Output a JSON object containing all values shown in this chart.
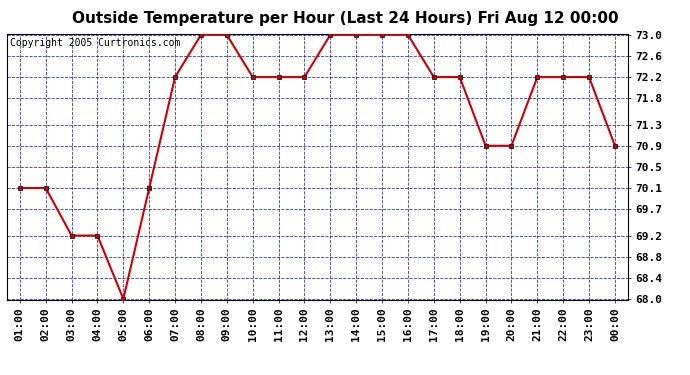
{
  "title": "Outside Temperature per Hour (Last 24 Hours) Fri Aug 12 00:00",
  "copyright": "Copyright 2005 Curtronics.com",
  "x_labels": [
    "01:00",
    "02:00",
    "03:00",
    "04:00",
    "05:00",
    "06:00",
    "07:00",
    "08:00",
    "09:00",
    "10:00",
    "11:00",
    "12:00",
    "13:00",
    "14:00",
    "15:00",
    "16:00",
    "17:00",
    "18:00",
    "19:00",
    "20:00",
    "21:00",
    "22:00",
    "23:00",
    "00:00"
  ],
  "y_values": [
    70.1,
    70.1,
    69.2,
    69.2,
    68.0,
    70.1,
    72.2,
    73.0,
    73.0,
    72.2,
    72.2,
    72.2,
    73.0,
    73.0,
    73.0,
    73.0,
    72.2,
    72.2,
    70.9,
    70.9,
    72.2,
    72.2,
    72.2,
    70.9
  ],
  "ylim": [
    68.0,
    73.0
  ],
  "y_ticks": [
    68.0,
    68.4,
    68.8,
    69.2,
    69.7,
    70.1,
    70.5,
    70.9,
    71.3,
    71.8,
    72.2,
    72.6,
    73.0
  ],
  "line_color": "#cc0000",
  "marker_color": "#000000",
  "grid_color": "#0000cc",
  "bg_color": "#ffffff",
  "plot_bg_color": "#ffffff",
  "title_fontsize": 11,
  "copyright_fontsize": 7,
  "tick_fontsize": 8
}
